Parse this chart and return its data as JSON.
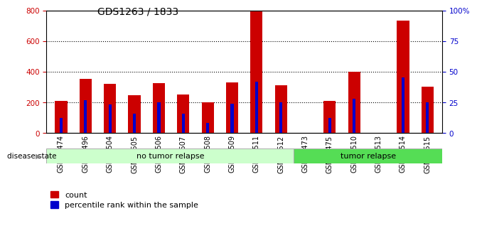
{
  "title": "GDS1263 / 1833",
  "samples": [
    "GSM50474",
    "GSM50496",
    "GSM50504",
    "GSM50505",
    "GSM50506",
    "GSM50507",
    "GSM50508",
    "GSM50509",
    "GSM50511",
    "GSM50512",
    "GSM50473",
    "GSM50475",
    "GSM50510",
    "GSM50513",
    "GSM50514",
    "GSM50515"
  ],
  "counts": [
    210,
    355,
    320,
    245,
    325,
    250,
    200,
    328,
    795,
    310,
    0,
    210,
    400,
    0,
    735,
    300
  ],
  "percentiles": [
    12,
    27,
    23,
    16,
    25,
    16,
    8,
    24,
    42,
    25,
    0,
    12,
    28,
    0,
    45,
    25
  ],
  "no_tumor_count": 10,
  "tumor_count": 6,
  "left_ylim": [
    0,
    800
  ],
  "right_ylim": [
    0,
    100
  ],
  "left_yticks": [
    0,
    200,
    400,
    600,
    800
  ],
  "right_yticks": [
    0,
    25,
    50,
    75,
    100
  ],
  "right_yticklabels": [
    "0",
    "25",
    "50",
    "75",
    "100%"
  ],
  "bar_color": "#cc0000",
  "percentile_color": "#0000cc",
  "no_relapse_color": "#ccffcc",
  "relapse_color": "#55dd55",
  "bar_width": 0.5,
  "grid_color": "#000000",
  "bg_color": "#ffffff",
  "tick_label_color_left": "#cc0000",
  "tick_label_color_right": "#0000cc",
  "title_fontsize": 10,
  "tick_fontsize": 7.5,
  "sample_fontsize": 7,
  "legend_fontsize": 8
}
